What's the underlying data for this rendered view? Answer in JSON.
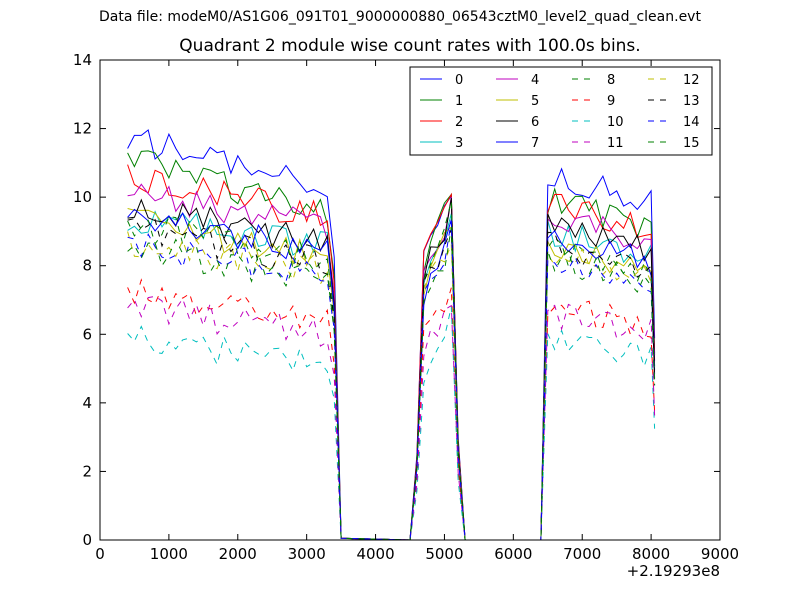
{
  "figure": {
    "suptitle": "Data file: modeM0/AS1G06_091T01_9000000880_06543cztM0_level2_quad_clean.evt",
    "xaxis_offset": "+2.19293e8"
  },
  "chart_data": {
    "type": "line",
    "title": "Quadrant 2 module wise count rates with 100.0s bins.",
    "xlabel": "",
    "ylabel": "",
    "xlim": [
      0,
      9000
    ],
    "ylim": [
      0,
      14
    ],
    "xticks": [
      0,
      1000,
      2000,
      3000,
      4000,
      5000,
      6000,
      7000,
      8000,
      9000
    ],
    "yticks": [
      0,
      2,
      4,
      6,
      8,
      10,
      12,
      14
    ],
    "grid": false,
    "legend": {
      "placement": "top-right",
      "columns": 4
    },
    "series": [
      {
        "name": "0",
        "color": "#0000ff",
        "dash": "solid",
        "base": 11.0,
        "trend": 1.5,
        "p2": 9.9,
        "p3": 10.7
      },
      {
        "name": "1",
        "color": "#008000",
        "dash": "solid",
        "base": 10.3,
        "trend": 1.6,
        "p2": 9.5,
        "p3": 9.9
      },
      {
        "name": "2",
        "color": "#ff0000",
        "dash": "solid",
        "base": 10.0,
        "trend": 1.2,
        "p2": 9.6,
        "p3": 9.8
      },
      {
        "name": "3",
        "color": "#00bfbf",
        "dash": "solid",
        "base": 9.0,
        "trend": 0.9,
        "p2": 8.9,
        "p3": 9.0
      },
      {
        "name": "4",
        "color": "#bf00bf",
        "dash": "solid",
        "base": 9.6,
        "trend": 1.0,
        "p2": 9.1,
        "p3": 9.5
      },
      {
        "name": "5",
        "color": "#bfbf00",
        "dash": "solid",
        "base": 8.8,
        "trend": 1.1,
        "p2": 8.7,
        "p3": 8.6
      },
      {
        "name": "6",
        "color": "#000000",
        "dash": "solid",
        "base": 9.2,
        "trend": 1.0,
        "p2": 9.0,
        "p3": 9.2
      },
      {
        "name": "7",
        "color": "#0000ff",
        "dash": "solid",
        "base": 8.9,
        "trend": 1.0,
        "p2": 8.4,
        "p3": 8.8
      },
      {
        "name": "8",
        "color": "#008000",
        "dash": "dashed",
        "base": 8.7,
        "trend": 1.0,
        "p2": 8.8,
        "p3": 8.5
      },
      {
        "name": "9",
        "color": "#ff0000",
        "dash": "dashed",
        "base": 6.8,
        "trend": 1.0,
        "p2": 7.0,
        "p3": 6.8
      },
      {
        "name": "10",
        "color": "#00bfbf",
        "dash": "dashed",
        "base": 5.5,
        "trend": 0.8,
        "p2": 5.7,
        "p3": 5.9
      },
      {
        "name": "11",
        "color": "#bf00bf",
        "dash": "dashed",
        "base": 6.4,
        "trend": 0.9,
        "p2": 6.5,
        "p3": 6.6
      },
      {
        "name": "12",
        "color": "#bfbf00",
        "dash": "dashed",
        "base": 8.3,
        "trend": 0.9,
        "p2": 8.4,
        "p3": 8.3
      },
      {
        "name": "13",
        "color": "#000000",
        "dash": "dashed",
        "base": 8.6,
        "trend": 1.0,
        "p2": 8.6,
        "p3": 8.6
      },
      {
        "name": "14",
        "color": "#0000ff",
        "dash": "dashed",
        "base": 8.2,
        "trend": 0.9,
        "p2": 8.3,
        "p3": 8.2
      },
      {
        "name": "15",
        "color": "#008000",
        "dash": "dashed",
        "base": 8.1,
        "trend": 0.9,
        "p2": 8.2,
        "p3": 8.2
      }
    ]
  }
}
